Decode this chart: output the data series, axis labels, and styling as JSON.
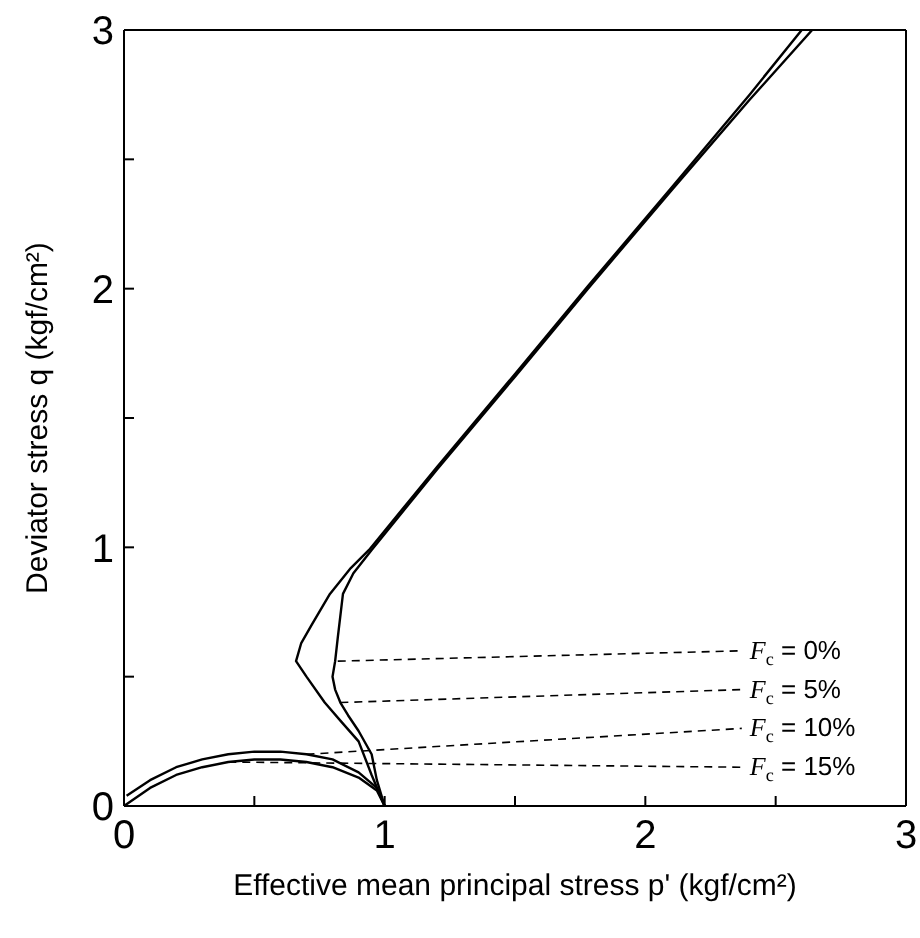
{
  "chart_data": {
    "type": "line",
    "xlabel": "Effective mean principal stress p' (kgf/cm²)",
    "ylabel": "Deviator stress q (kgf/cm²)",
    "xlim": [
      0,
      3
    ],
    "ylim": [
      0,
      3
    ],
    "xticks": [
      0,
      {
        "value": 0.5,
        "label": null
      },
      1,
      {
        "value": 1.5,
        "label": null
      },
      2,
      {
        "value": 2.5,
        "label": null
      },
      3
    ],
    "yticks": [
      0,
      {
        "value": 0.5,
        "label": null
      },
      1,
      {
        "value": 1.5,
        "label": null
      },
      2,
      {
        "value": 2.5,
        "label": null
      },
      3
    ],
    "marker": "none",
    "line_style": "solid",
    "series": [
      {
        "color": "#000000",
        "x": [
          1,
          0.95,
          0.9,
          0.83,
          0.77,
          0.7,
          0.66,
          0.68,
          0.72,
          0.79,
          0.87,
          0.94,
          1.2,
          1.5,
          1.78,
          2.1,
          2.4,
          2.6
        ],
        "values": [
          0,
          0.12,
          0.25,
          0.33,
          0.4,
          0.5,
          0.56,
          0.63,
          0.7,
          0.82,
          0.92,
          0.99,
          1.31,
          1.67,
          2.01,
          2.39,
          2.75,
          3
        ]
      },
      {
        "color": "#000000",
        "x": [
          1,
          0.97,
          0.95,
          0.9,
          0.86,
          0.83,
          0.81,
          0.8,
          0.81,
          0.82,
          0.84,
          0.88,
          0.95,
          1.2,
          1.5,
          1.78,
          2.1,
          2.4,
          2.64
        ],
        "values": [
          0,
          0.1,
          0.2,
          0.29,
          0.35,
          0.4,
          0.45,
          0.5,
          0.56,
          0.65,
          0.82,
          0.9,
          0.99,
          1.3,
          1.66,
          2.0,
          2.38,
          2.73,
          3
        ]
      },
      {
        "color": "#000000",
        "x": [
          0.01,
          0.1,
          0.2,
          0.3,
          0.4,
          0.5,
          0.6,
          0.7,
          0.8,
          0.9,
          0.97,
          1
        ],
        "values": [
          0.04,
          0.1,
          0.15,
          0.18,
          0.2,
          0.21,
          0.21,
          0.2,
          0.18,
          0.13,
          0.07,
          0
        ]
      },
      {
        "color": "#000000",
        "x": [
          0,
          0.1,
          0.2,
          0.3,
          0.4,
          0.5,
          0.6,
          0.7,
          0.8,
          0.9,
          0.97,
          1
        ],
        "values": [
          0,
          0.07,
          0.12,
          0.15,
          0.17,
          0.18,
          0.18,
          0.17,
          0.15,
          0.11,
          0.06,
          0
        ]
      }
    ],
    "annotations": [
      {
        "text": "F$_{c}$ = 0%",
        "x": 0.82,
        "y": 0.56
      },
      {
        "text": "F$_{c}$ = 5%",
        "x": 0.83,
        "y": 0.4
      },
      {
        "text": "F$_{c}$ = 10%",
        "x": 0.7,
        "y": 0.2
      },
      {
        "text": "F$_{c}$ = 15%",
        "x": 0.4,
        "y": 0.17
      }
    ]
  }
}
